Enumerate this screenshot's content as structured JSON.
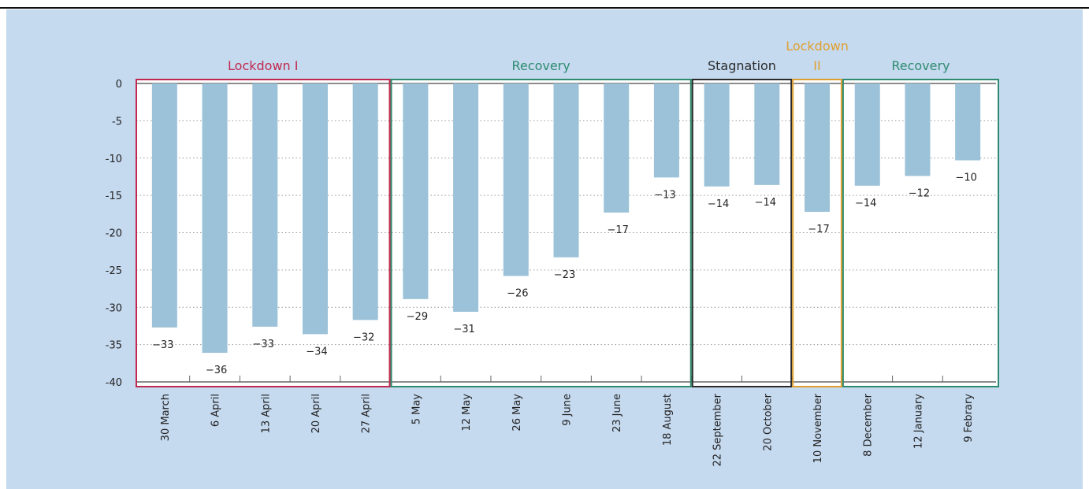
{
  "chart_data": {
    "type": "bar",
    "categories": [
      "30 March",
      "6 April",
      "13 April",
      "20 April",
      "27 April",
      "5 May",
      "12 May",
      "26 May",
      "9 June",
      "23 June",
      "18 August",
      "22 September",
      "20 October",
      "10 November",
      "8 December",
      "12 January",
      "9 Febrary"
    ],
    "values": [
      -32.7,
      -36.1,
      -32.6,
      -33.6,
      -31.7,
      -28.9,
      -30.6,
      -25.8,
      -23.3,
      -17.3,
      -12.6,
      -13.8,
      -13.6,
      -17.2,
      -13.7,
      -12.4,
      -10.3
    ],
    "value_labels": [
      "−33",
      "−36",
      "−33",
      "−34",
      "−32",
      "−29",
      "−31",
      "−26",
      "−23",
      "−17",
      "−13",
      "−14",
      "−14",
      "−17",
      "−14",
      "−12",
      "−10"
    ],
    "color": "#9bc2d8",
    "ylim": [
      -40,
      0
    ],
    "yticks": [
      0,
      -5,
      -10,
      -15,
      -20,
      -25,
      -30,
      -35,
      -40
    ],
    "grid": true,
    "phases": [
      {
        "label": "Lockdown I",
        "start": 0,
        "end": 4,
        "color": "#c0284d"
      },
      {
        "label": "Recovery",
        "start": 5,
        "end": 10,
        "color": "#2e8b6f"
      },
      {
        "label": "Stagnation",
        "start": 11,
        "end": 12,
        "color": "#2b2b2b"
      },
      {
        "label": "Lockdown II",
        "start": 13,
        "end": 13,
        "color": "#e0a030"
      },
      {
        "label": "Recovery",
        "start": 14,
        "end": 16,
        "color": "#2e8b6f"
      }
    ]
  }
}
